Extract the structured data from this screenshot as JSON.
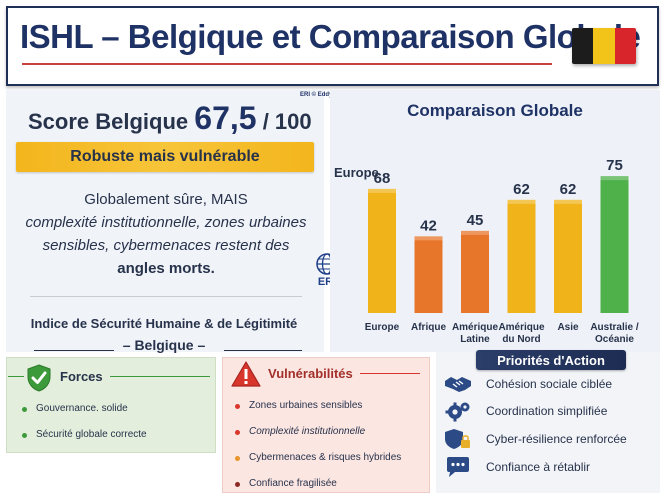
{
  "header": {
    "title": "ISHL – Belgique et Comparaison Globale",
    "flag_colors": [
      "#1c1c1c",
      "#f2c318",
      "#d8252c"
    ]
  },
  "credit": "ERI © Eddy Belflore",
  "score": {
    "label": "Score Belgique",
    "value": "67,5",
    "max": "/ 100"
  },
  "banner": "Robuste mais vulnérable",
  "description": {
    "line1": "Globalement sûre, MAIS",
    "line2": "complexité institutionnelle, zones urbaines",
    "line3": "sensibles, cybermenaces restent des",
    "line4": "angles morts."
  },
  "index": {
    "title": "Indice de Sécurité Humaine & de Légitimité",
    "subtitle": "– Belgique –"
  },
  "logo_text": "ERI",
  "chart_data": {
    "type": "bar",
    "title": "Comparaison Globale",
    "corner_label": "Europe",
    "categories": [
      "Europe",
      "Afrique",
      "Amérique Latine",
      "Amérique du Nord",
      "Asie",
      "Australie / Océanie"
    ],
    "category_lines": [
      [
        "Europe"
      ],
      [
        "Afrique"
      ],
      [
        "Amérique",
        "Latine"
      ],
      [
        "Amérique",
        "du Nord"
      ],
      [
        "Asie"
      ],
      [
        "Australie /",
        "Océanie"
      ]
    ],
    "values": [
      68,
      42,
      45,
      62,
      62,
      75
    ],
    "bar_colors": [
      "#f0b31a",
      "#e8762a",
      "#e8762a",
      "#f0b31a",
      "#f0b31a",
      "#4eb14a"
    ],
    "ylim": [
      0,
      80
    ],
    "grid": false,
    "legend": "none"
  },
  "forces": {
    "title": "Forces",
    "items": [
      "Gouvernance. solide",
      "Sécurité globale correcte"
    ]
  },
  "vulnerabilites": {
    "title": "Vulnérabilités",
    "items": [
      "Zones urbaines sensibles",
      "Complexité institutionnelle",
      "Cybermenaces & risques hybrides",
      "Confiance fragilisée"
    ],
    "dot_colors": [
      "#d9362c",
      "#d9362c",
      "#e8952a",
      "#8b2a24"
    ]
  },
  "priorites": {
    "title": "Priorités d'Action",
    "items": [
      {
        "label": "Cohésion sociale ciblée",
        "icon": "handshake-icon"
      },
      {
        "label": "Coordination simplifiée",
        "icon": "gears-icon"
      },
      {
        "label": "Cyber-résilience renforcée",
        "icon": "shield-lock-icon"
      },
      {
        "label": "Confiance à rétablir",
        "icon": "chat-bubble-icon"
      }
    ]
  }
}
